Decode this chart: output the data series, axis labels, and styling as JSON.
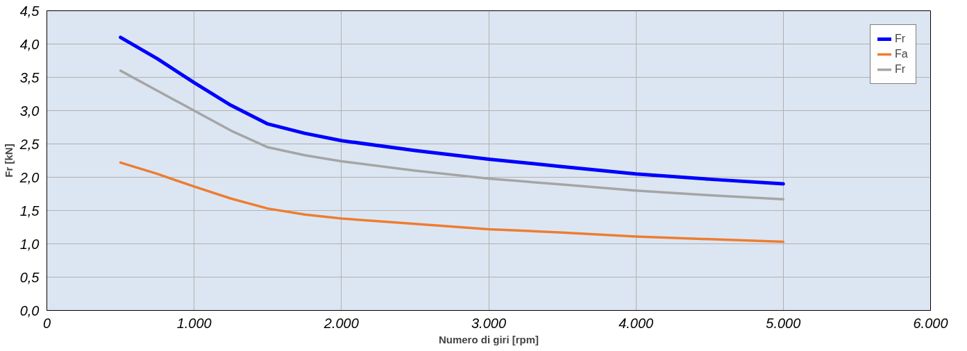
{
  "chart_data": {
    "type": "line",
    "xlabel": "Numero di giri [rpm]",
    "ylabel": "Fr [kN]",
    "x": [
      500,
      750,
      1000,
      1250,
      1500,
      1750,
      2000,
      2500,
      3000,
      3500,
      4000,
      4500,
      5000
    ],
    "series": [
      {
        "name": "Fr",
        "color": "#0000ff",
        "values": [
          4.1,
          3.78,
          3.42,
          3.08,
          2.8,
          2.66,
          2.55,
          2.4,
          2.27,
          2.16,
          2.05,
          1.97,
          1.9
        ]
      },
      {
        "name": "Fa",
        "color": "#ed7d31",
        "values": [
          2.22,
          2.05,
          1.86,
          1.68,
          1.53,
          1.44,
          1.38,
          1.3,
          1.22,
          1.17,
          1.11,
          1.07,
          1.03
        ]
      },
      {
        "name": "Fr",
        "color": "#a5a5a5",
        "values": [
          3.6,
          3.3,
          3.0,
          2.7,
          2.45,
          2.33,
          2.24,
          2.1,
          1.98,
          1.89,
          1.8,
          1.73,
          1.67
        ]
      }
    ],
    "xlim": [
      0,
      6000
    ],
    "ylim": [
      0,
      4.5
    ],
    "xticks": [
      0,
      {
        "value": 1000,
        "label": "1.000"
      },
      {
        "value": 2000,
        "label": "2.000"
      },
      {
        "value": 3000,
        "label": "3.000"
      },
      {
        "value": 4000,
        "label": "4.000"
      },
      {
        "value": 5000,
        "label": "5.000"
      },
      {
        "value": 6000,
        "label": "6.000"
      }
    ],
    "yticks": [
      {
        "value": 0,
        "label": "0,0"
      },
      {
        "value": 0.5,
        "label": "0,5"
      },
      {
        "value": 1,
        "label": "1,0"
      },
      {
        "value": 1.5,
        "label": "1,5"
      },
      {
        "value": 2,
        "label": "2,0"
      },
      {
        "value": 2.5,
        "label": "2,5"
      },
      {
        "value": 3,
        "label": "3,0"
      },
      {
        "value": 3.5,
        "label": "3,5"
      },
      {
        "value": 4,
        "label": "4,0"
      },
      {
        "value": 4.5,
        "label": "4,5"
      }
    ],
    "grid": true,
    "legend": "top right",
    "marker": "none",
    "line_style": "solid"
  }
}
